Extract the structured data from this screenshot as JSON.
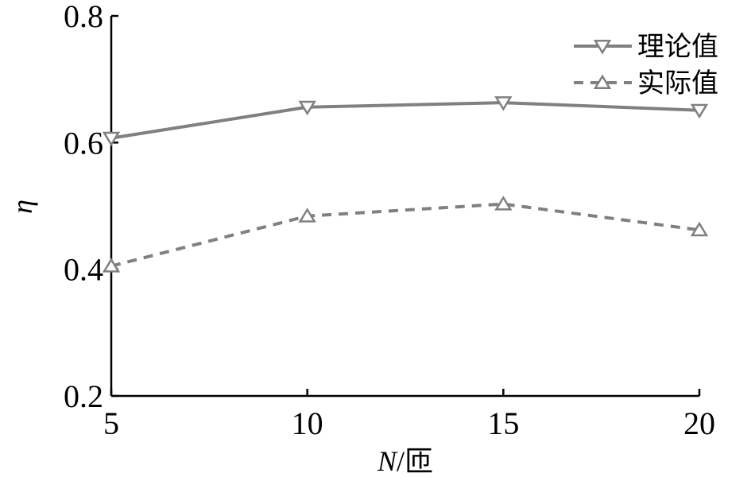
{
  "chart_data": {
    "type": "line",
    "x": [
      5,
      10,
      15,
      20
    ],
    "xlim": [
      5,
      20
    ],
    "ylim": [
      0.2,
      0.8
    ],
    "xticks": [
      "5",
      "10",
      "15",
      "20"
    ],
    "yticks": [
      "0.2",
      "0.4",
      "0.6",
      "0.8"
    ],
    "xlabel_var": "N",
    "xlabel_unit": "/匝",
    "ylabel": "η",
    "grid": false,
    "legend_position": "top-right",
    "series": [
      {
        "name": "理论值",
        "values": [
          0.607,
          0.656,
          0.663,
          0.651
        ],
        "color": "#808080",
        "dash": "solid",
        "marker": "triangle-down"
      },
      {
        "name": "实际值",
        "values": [
          0.405,
          0.484,
          0.503,
          0.462
        ],
        "color": "#808080",
        "dash": "dashed",
        "marker": "triangle-up"
      }
    ]
  }
}
